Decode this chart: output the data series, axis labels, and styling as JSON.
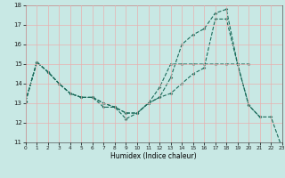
{
  "background_color": "#c8e8e4",
  "grid_color": "#e8b0b0",
  "line_color": "#1a6b5a",
  "xlabel": "Humidex (Indice chaleur)",
  "xlim": [
    0,
    23
  ],
  "ylim": [
    11,
    18
  ],
  "xticks": [
    0,
    1,
    2,
    3,
    4,
    5,
    6,
    7,
    8,
    9,
    10,
    11,
    12,
    13,
    14,
    15,
    16,
    17,
    18,
    19,
    20,
    21,
    22,
    23
  ],
  "yticks": [
    11,
    12,
    13,
    14,
    15,
    16,
    17,
    18
  ],
  "series": [
    {
      "x": [
        0,
        1,
        2,
        3,
        4,
        5,
        6,
        7,
        8,
        9,
        10,
        11,
        12,
        13,
        14,
        15,
        16,
        17,
        18,
        19,
        20,
        21
      ],
      "y": [
        13.1,
        15.1,
        14.6,
        14.0,
        13.5,
        13.3,
        13.3,
        12.8,
        12.8,
        12.2,
        12.5,
        13.0,
        13.3,
        14.3,
        16.0,
        16.5,
        16.8,
        17.6,
        17.8,
        15.0,
        12.9,
        12.3
      ]
    },
    {
      "x": [
        0,
        1,
        2,
        3,
        4,
        5,
        6,
        7,
        8,
        9,
        10,
        11,
        12,
        13,
        14,
        15,
        16,
        17,
        18,
        19,
        20
      ],
      "y": [
        13.1,
        15.1,
        14.6,
        14.0,
        13.5,
        13.3,
        13.3,
        13.0,
        12.8,
        12.5,
        12.5,
        13.0,
        13.8,
        15.0,
        15.0,
        15.0,
        15.0,
        15.0,
        15.0,
        15.0,
        15.0
      ]
    },
    {
      "x": [
        0,
        1,
        2,
        3,
        4,
        5,
        6,
        7,
        8,
        9,
        10,
        11,
        12,
        13,
        14,
        15,
        16,
        17,
        18,
        19,
        20,
        21,
        22,
        23
      ],
      "y": [
        13.1,
        15.1,
        14.6,
        14.0,
        13.5,
        13.3,
        13.3,
        13.0,
        12.8,
        12.5,
        12.5,
        13.0,
        13.3,
        13.5,
        14.0,
        14.5,
        14.8,
        17.3,
        17.3,
        15.0,
        12.9,
        12.3,
        12.3,
        10.7
      ]
    }
  ]
}
